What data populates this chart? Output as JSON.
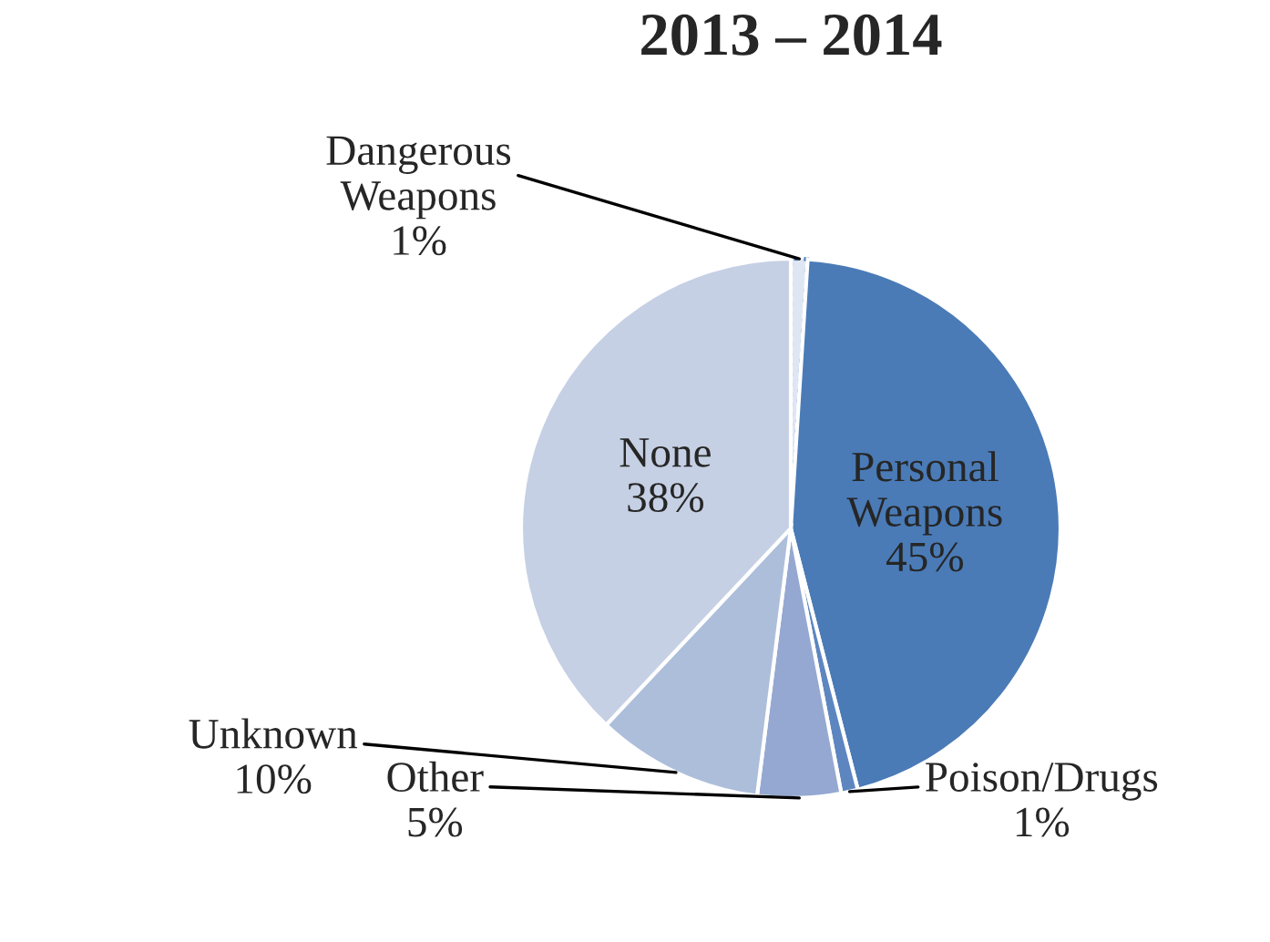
{
  "chart_data": {
    "type": "pie",
    "title": "2013 – 2014",
    "categories": [
      "Dangerous Weapons",
      "Personal Weapons",
      "Poison/Drugs",
      "Other",
      "Unknown",
      "None"
    ],
    "values": [
      1,
      45,
      1,
      5,
      10,
      38
    ],
    "value_labels": [
      "1%",
      "45%",
      "1%",
      "5%",
      "10%",
      "38%"
    ],
    "colors": [
      "#dfe6f3",
      "#4a7bb7",
      "#5d86c0",
      "#95a8d1",
      "#adbedb",
      "#c6d0e4"
    ],
    "legend": false
  }
}
